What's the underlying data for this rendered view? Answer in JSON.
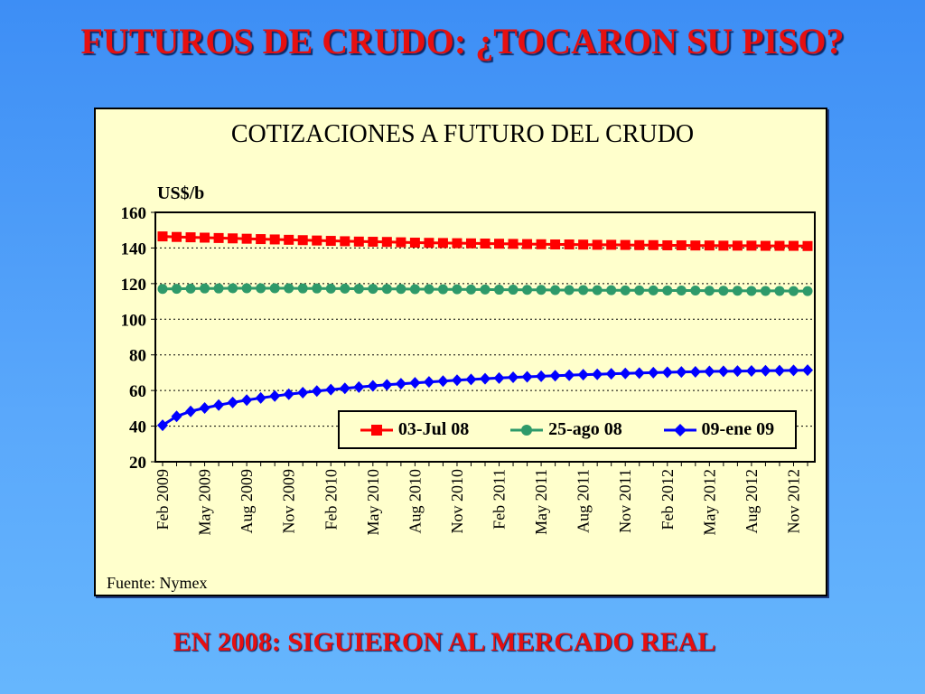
{
  "slide": {
    "title": "FUTUROS DE CRUDO: ¿TOCARON SU PISO?",
    "caption": "EN 2008: SIGUIERON AL MERCADO REAL"
  },
  "chart_data": {
    "type": "line",
    "title": "COTIZACIONES A FUTURO DEL  CRUDO",
    "ylabel": "US$/b",
    "xlabel": "",
    "source": "Fuente: Nymex",
    "ylim": [
      20,
      160
    ],
    "yticks": [
      20,
      40,
      60,
      80,
      100,
      120,
      140,
      160
    ],
    "grid": "horizontal dotted",
    "legend_position": "bottom-center inside plot",
    "x_tick_labels": [
      "Feb 2009",
      "May 2009",
      "Aug 2009",
      "Nov 2009",
      "Feb 2010",
      "May 2010",
      "Aug 2010",
      "Nov 2010",
      "Feb 2011",
      "May 2011",
      "Aug 2011",
      "Nov 2011",
      "Feb 2012",
      "May 2012",
      "Aug 2012",
      "Nov 2012"
    ],
    "x_start": "Feb 2009",
    "x_end": "Dec 2012",
    "series": [
      {
        "name": "03-Jul 08",
        "color": "#ff0000",
        "marker": "square",
        "values": [
          146.5,
          146.2,
          146.0,
          145.8,
          145.6,
          145.4,
          145.2,
          145.0,
          144.8,
          144.6,
          144.4,
          144.2,
          144.0,
          143.8,
          143.6,
          143.5,
          143.4,
          143.2,
          143.0,
          142.9,
          142.8,
          142.7,
          142.6,
          142.5,
          142.4,
          142.3,
          142.2,
          142.1,
          142.0,
          142.0,
          141.9,
          141.8,
          141.8,
          141.7,
          141.6,
          141.6,
          141.5,
          141.5,
          141.4,
          141.4,
          141.3,
          141.3,
          141.3,
          141.2,
          141.2,
          141.2,
          141.1
        ]
      },
      {
        "name": "25-ago 08",
        "color": "#2e9a6a",
        "marker": "circle",
        "values": [
          117.0,
          117.1,
          117.2,
          117.3,
          117.3,
          117.4,
          117.4,
          117.4,
          117.4,
          117.4,
          117.3,
          117.3,
          117.2,
          117.2,
          117.1,
          117.1,
          117.0,
          117.0,
          116.9,
          116.9,
          116.8,
          116.8,
          116.7,
          116.7,
          116.6,
          116.6,
          116.5,
          116.5,
          116.4,
          116.4,
          116.4,
          116.3,
          116.3,
          116.2,
          116.2,
          116.2,
          116.1,
          116.1,
          116.1,
          116.0,
          116.0,
          116.0,
          115.9,
          115.9,
          115.9,
          115.8,
          115.8
        ]
      },
      {
        "name": "09-ene 09",
        "color": "#0000ff",
        "marker": "diamond",
        "values": [
          40.5,
          45.5,
          48.3,
          50.2,
          51.8,
          53.3,
          54.6,
          55.8,
          56.9,
          57.9,
          58.8,
          59.7,
          60.5,
          61.2,
          61.9,
          62.6,
          63.2,
          63.8,
          64.3,
          64.8,
          65.3,
          65.8,
          66.2,
          66.6,
          67.0,
          67.4,
          67.7,
          68.0,
          68.3,
          68.6,
          68.9,
          69.1,
          69.4,
          69.6,
          69.8,
          70.0,
          70.2,
          70.4,
          70.5,
          70.7,
          70.8,
          70.9,
          71.0,
          71.1,
          71.2,
          71.3,
          71.4
        ]
      }
    ]
  }
}
